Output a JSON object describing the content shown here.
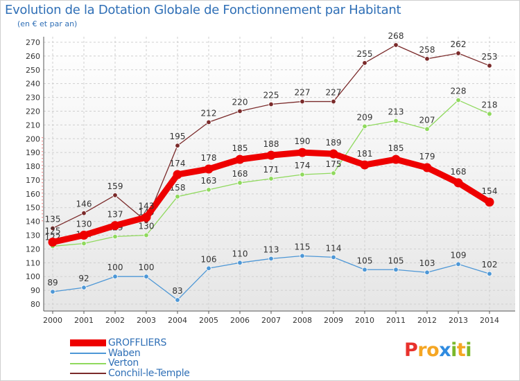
{
  "header": {
    "title": "Evolution de la Dotation Globale de Fonctionnement par Habitant",
    "subtitle": "(en € et par an)"
  },
  "brand": {
    "letters": [
      "P",
      "r",
      "o",
      "x",
      "i",
      "t",
      "i"
    ],
    "colors": [
      "#e8312c",
      "#f5a623",
      "#f5a623",
      "#2f8be0",
      "#7ab82b",
      "#f5a623",
      "#7ab82b"
    ]
  },
  "chart_data": {
    "type": "line",
    "title": "Evolution de la Dotation Globale de Fonctionnement par Habitant",
    "subtitle": "(en € et par an)",
    "x": [
      "2000",
      "2001",
      "2002",
      "2003",
      "2004",
      "2005",
      "2006",
      "2007",
      "2008",
      "2009",
      "2010",
      "2011",
      "2012",
      "2013",
      "2014"
    ],
    "ylim": [
      80,
      270
    ],
    "yticks": [
      80,
      90,
      100,
      110,
      120,
      130,
      140,
      150,
      160,
      170,
      180,
      190,
      200,
      210,
      220,
      230,
      240,
      250,
      260,
      270
    ],
    "grid": true,
    "legend_position": "bottom-left",
    "series": [
      {
        "name": "GROFFLIERS",
        "color": "#ee0000",
        "values": [
          125,
          130,
          137,
          143,
          174,
          178,
          185,
          188,
          190,
          189,
          181,
          185,
          179,
          168,
          154
        ]
      },
      {
        "name": "Waben",
        "color": "#4d97d6",
        "values": [
          89,
          92,
          100,
          100,
          83,
          106,
          110,
          113,
          115,
          114,
          105,
          105,
          103,
          109,
          102
        ]
      },
      {
        "name": "Verton",
        "color": "#8fd95d",
        "values": [
          122,
          124,
          129,
          130,
          158,
          163,
          168,
          171,
          174,
          175,
          209,
          213,
          207,
          228,
          218
        ]
      },
      {
        "name": "Conchil-le-Temple",
        "color": "#7a2a2a",
        "values": [
          135,
          146,
          159,
          140,
          195,
          212,
          220,
          225,
          227,
          227,
          255,
          268,
          258,
          262,
          253
        ]
      }
    ]
  }
}
